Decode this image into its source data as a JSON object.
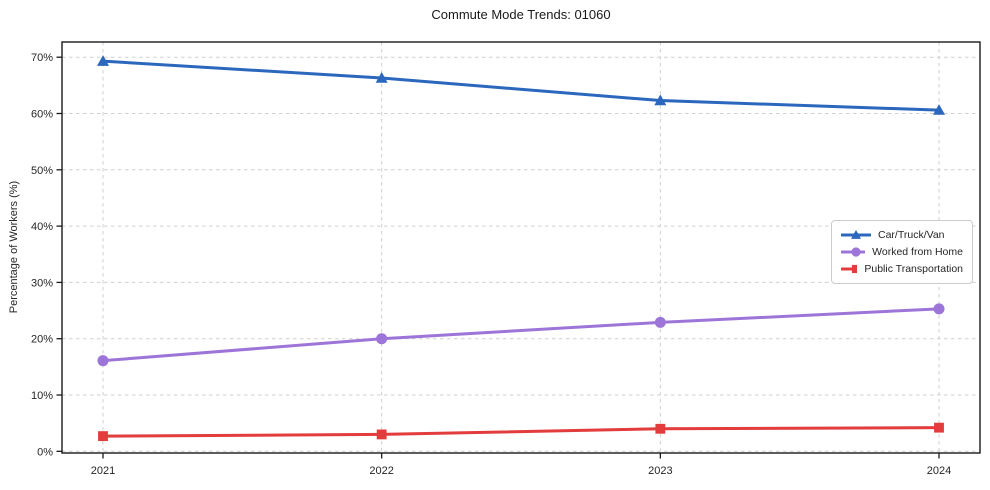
{
  "chart_data": {
    "type": "line",
    "title": "Commute Mode Trends: 01060",
    "xlabel": "",
    "ylabel": "Percentage of Workers (%)",
    "categories": [
      "2021",
      "2022",
      "2023",
      "2024"
    ],
    "series": [
      {
        "name": "Car/Truck/Van",
        "values": [
          69.3,
          66.3,
          62.3,
          60.6
        ],
        "color": "#2b67bd",
        "marker": "triangle"
      },
      {
        "name": "Worked from Home",
        "values": [
          16.1,
          20.0,
          22.9,
          25.3
        ],
        "color": "#9d75d8",
        "marker": "circle"
      },
      {
        "name": "Public Transportation",
        "values": [
          2.7,
          3.0,
          4.0,
          4.2
        ],
        "color": "#e23c3c",
        "marker": "square"
      }
    ],
    "ylim": [
      -0.3,
      72.7
    ],
    "ytick_values": [
      0,
      10,
      20,
      30,
      40,
      50,
      60,
      70
    ],
    "ytick_labels": [
      "0%",
      "10%",
      "20%",
      "30%",
      "40%",
      "50%",
      "60%",
      "70%"
    ],
    "grid": true,
    "grid_style": "dashed",
    "legend_position": "center-right",
    "colors": {
      "frame": "#1a1a1a",
      "gridline": "#cfcfcf",
      "tick_text": "#262626",
      "background": "#ffffff"
    }
  }
}
